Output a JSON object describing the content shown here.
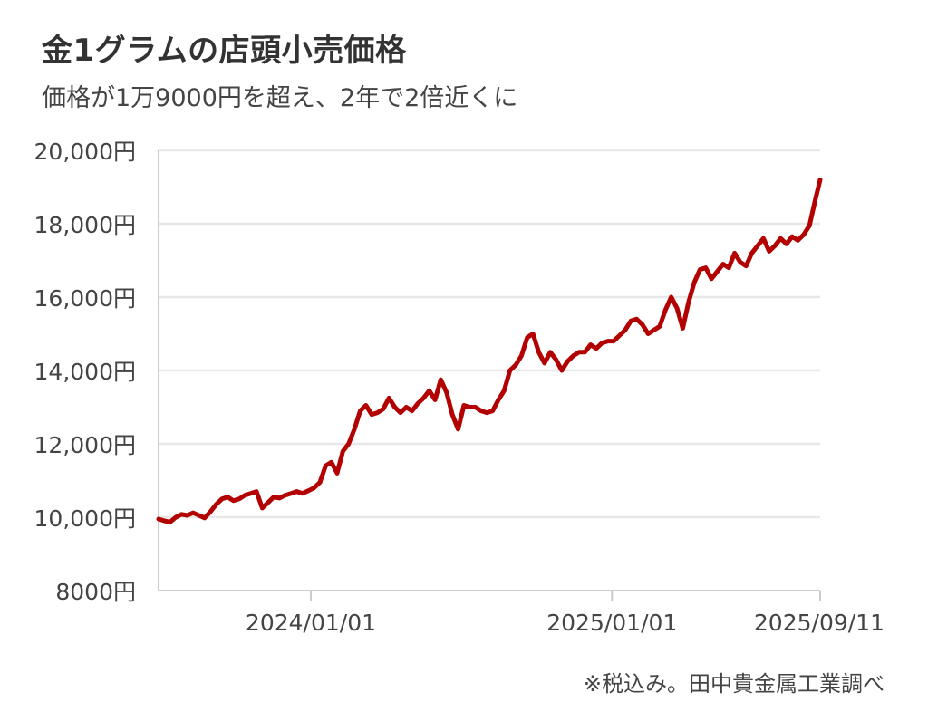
{
  "title": "金1グラムの店頭小売価格",
  "subtitle": "価格が1万9000円を超え、2年で2倍近くに",
  "source": "※税込み。田中貴金属工業調べ",
  "colors": {
    "line": "#b30000",
    "grid": "#e8e8e8",
    "axis": "#cccccc",
    "text": "#444444"
  },
  "chart_data": {
    "type": "line",
    "title": "金1グラムの店頭小売価格",
    "subtitle": "価格が1万9000円を超え、2年で2倍近くに",
    "xlabel": "",
    "ylabel": "",
    "grid": true,
    "legend": "none",
    "ylim": [
      8000,
      20000
    ],
    "xlim": [
      "2023-06-30",
      "2025-09-11"
    ],
    "y_ticks": [
      {
        "value": 8000,
        "label": "8000円"
      },
      {
        "value": 10000,
        "label": "10,000円"
      },
      {
        "value": 12000,
        "label": "12,000円"
      },
      {
        "value": 14000,
        "label": "14,000円"
      },
      {
        "value": 16000,
        "label": "16,000円"
      },
      {
        "value": 18000,
        "label": "18,000円"
      },
      {
        "value": 20000,
        "label": "20,000円"
      }
    ],
    "x_ticks": [
      {
        "value": "2024-01-01",
        "label": "2024/01/01"
      },
      {
        "value": "2025-01-01",
        "label": "2025/01/01"
      },
      {
        "value": "2025-09-11",
        "label": "2025/09/11"
      }
    ],
    "series": [
      {
        "x": [
          "2023-06-30",
          "2023-07-07",
          "2023-07-14",
          "2023-07-21",
          "2023-07-28",
          "2023-08-04",
          "2023-08-11",
          "2023-08-18",
          "2023-08-25",
          "2023-09-01",
          "2023-09-08",
          "2023-09-15",
          "2023-09-22",
          "2023-09-29",
          "2023-10-06",
          "2023-10-13",
          "2023-10-20",
          "2023-10-27",
          "2023-11-03",
          "2023-11-10",
          "2023-11-17",
          "2023-11-24",
          "2023-12-01",
          "2023-12-08",
          "2023-12-15",
          "2023-12-22",
          "2023-12-29",
          "2024-01-05",
          "2024-01-12",
          "2024-01-19",
          "2024-01-26",
          "2024-02-02",
          "2024-02-09",
          "2024-02-16",
          "2024-02-23",
          "2024-03-01",
          "2024-03-08",
          "2024-03-15",
          "2024-03-22",
          "2024-03-29",
          "2024-04-05",
          "2024-04-12",
          "2024-04-19",
          "2024-04-26",
          "2024-05-03",
          "2024-05-10",
          "2024-05-17",
          "2024-05-24",
          "2024-05-31",
          "2024-06-07",
          "2024-06-14",
          "2024-06-21",
          "2024-06-28",
          "2024-07-05",
          "2024-07-12",
          "2024-07-19",
          "2024-07-26",
          "2024-08-02",
          "2024-08-09",
          "2024-08-16",
          "2024-08-23",
          "2024-08-30",
          "2024-09-06",
          "2024-09-13",
          "2024-09-20",
          "2024-09-27",
          "2024-10-04",
          "2024-10-11",
          "2024-10-18",
          "2024-10-25",
          "2024-11-01",
          "2024-11-08",
          "2024-11-15",
          "2024-11-22",
          "2024-11-29",
          "2024-12-06",
          "2024-12-13",
          "2024-12-20",
          "2024-12-27",
          "2025-01-03",
          "2025-01-10",
          "2025-01-17",
          "2025-01-24",
          "2025-01-31",
          "2025-02-07",
          "2025-02-14",
          "2025-02-21",
          "2025-02-28",
          "2025-03-07",
          "2025-03-14",
          "2025-03-21",
          "2025-03-28",
          "2025-04-04",
          "2025-04-11",
          "2025-04-18",
          "2025-04-25",
          "2025-05-02",
          "2025-05-09",
          "2025-05-16",
          "2025-05-23",
          "2025-05-30",
          "2025-06-06",
          "2025-06-13",
          "2025-06-20",
          "2025-06-27",
          "2025-07-04",
          "2025-07-11",
          "2025-07-18",
          "2025-07-25",
          "2025-08-01",
          "2025-08-08",
          "2025-08-15",
          "2025-08-22",
          "2025-08-29",
          "2025-09-05",
          "2025-09-11"
        ],
        "y": [
          9950,
          9900,
          9870,
          10000,
          10080,
          10050,
          10120,
          10050,
          9980,
          10150,
          10350,
          10500,
          10550,
          10450,
          10500,
          10600,
          10650,
          10700,
          10250,
          10400,
          10550,
          10520,
          10600,
          10650,
          10700,
          10650,
          10720,
          10800,
          10950,
          11400,
          11500,
          11200,
          11800,
          12000,
          12400,
          12900,
          13050,
          12800,
          12850,
          12950,
          13250,
          13000,
          12850,
          13000,
          12900,
          13100,
          13250,
          13450,
          13200,
          13750,
          13400,
          12800,
          12400,
          13050,
          13000,
          13000,
          12900,
          12850,
          12900,
          13200,
          13450,
          14000,
          14150,
          14400,
          14900,
          15000,
          14500,
          14200,
          14500,
          14300,
          14000,
          14250,
          14400,
          14500,
          14500,
          14700,
          14600,
          14750,
          14800,
          14800,
          14950,
          15100,
          15350,
          15400,
          15250,
          15000,
          15100,
          15200,
          15650,
          16000,
          15700,
          15150,
          15850,
          16400,
          16750,
          16800,
          16500,
          16700,
          16900,
          16800,
          17200,
          16950,
          16850,
          17200,
          17400,
          17600,
          17250,
          17400,
          17600,
          17450,
          17650,
          17550,
          17700,
          17950,
          18650,
          19200
        ]
      }
    ]
  }
}
